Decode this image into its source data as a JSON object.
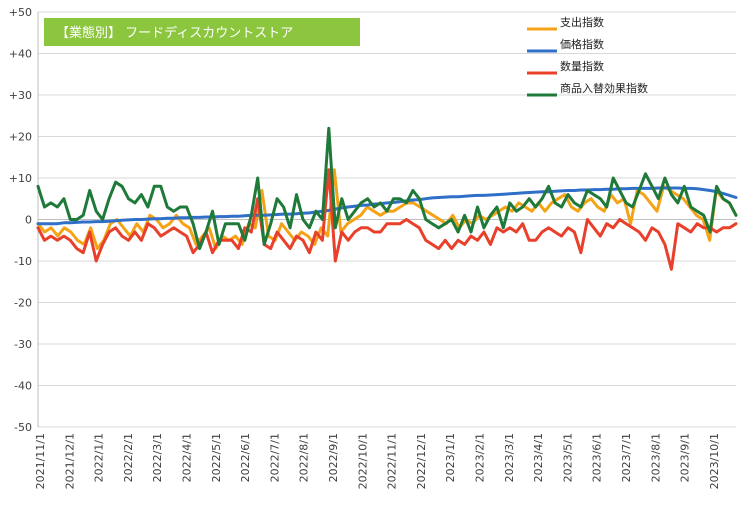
{
  "chart_data": {
    "type": "line",
    "title": "【業態別】 フードディスカウントストア",
    "title_box_color": "#8cc63f",
    "ylim": [
      -50,
      50
    ],
    "y_ticks": [
      "+50",
      "+40",
      "+30",
      "+20",
      "+10",
      "0",
      "-10",
      "-20",
      "-30",
      "-40",
      "-50"
    ],
    "x_ticks": [
      "2021/11/1",
      "2021/12/1",
      "2022/1/1",
      "2022/2/1",
      "2022/3/1",
      "2022/4/1",
      "2022/5/1",
      "2022/6/1",
      "2022/7/1",
      "2022/8/1",
      "2022/9/1",
      "2022/10/1",
      "2022/11/1",
      "2022/12/1",
      "2023/1/1",
      "2023/2/1",
      "2023/3/1",
      "2023/4/1",
      "2023/5/1",
      "2023/6/1",
      "2023/7/1",
      "2023/8/1",
      "2023/9/1",
      "2023/10/1"
    ],
    "grid": true,
    "legend_position": "top-right",
    "series": [
      {
        "name": "支出指数",
        "color": "#f5a316",
        "values": [
          -1,
          -3,
          -2,
          -4,
          -2,
          -3,
          -5,
          -6,
          -2,
          -7,
          -5,
          -1,
          0,
          -2,
          -4,
          -1,
          -3,
          1,
          0,
          -2,
          -1,
          1,
          -1,
          -2,
          -6,
          -4,
          -2,
          -7,
          -4,
          -5,
          -4,
          -6,
          -1,
          -2,
          7,
          -4,
          -5,
          -1,
          -3,
          -5,
          -3,
          -4,
          -6,
          -2,
          -4,
          12,
          -3,
          -1,
          0,
          1,
          3,
          2,
          1,
          2,
          2,
          3,
          4,
          4,
          3,
          2,
          1,
          0,
          -1,
          1,
          -2,
          0,
          -1,
          1,
          0,
          1,
          2,
          3,
          2,
          4,
          3,
          2,
          4,
          2,
          4,
          5,
          6,
          3,
          2,
          4,
          5,
          3,
          2,
          6,
          4,
          5,
          -1,
          7,
          6,
          4,
          2,
          8,
          7,
          6,
          5,
          3,
          1,
          0,
          -5,
          7,
          5,
          4,
          1
        ],
        "marks": [
          -1,
          -3,
          -2,
          -4,
          -2,
          -3,
          -5,
          -6,
          -2,
          -7,
          -5,
          -1,
          0,
          -2,
          -4,
          -1,
          -3,
          1,
          0,
          -2,
          -1,
          1,
          -1,
          -2,
          -6,
          -4,
          -2,
          -7,
          -4,
          -5,
          -4,
          -6,
          -1,
          -2,
          7,
          -4,
          -5,
          -1,
          -3,
          -5,
          -3,
          -4,
          -6,
          -2,
          -4,
          12,
          -3,
          -1,
          0,
          1,
          3,
          2,
          1,
          2,
          2,
          3,
          4,
          4,
          3,
          2,
          1,
          0,
          -1,
          1,
          -2,
          0,
          -1,
          1,
          0,
          1,
          2,
          3,
          2,
          4,
          3,
          2,
          4,
          2,
          4,
          5,
          6,
          3,
          2,
          4,
          5,
          3,
          2,
          6,
          4,
          5,
          -1,
          7,
          6,
          4,
          2,
          8,
          7,
          6,
          5,
          3,
          1,
          0,
          -5,
          7,
          5,
          4,
          1
        ]
      },
      {
        "name": "価格指数",
        "color": "#2f6fc8",
        "values": [
          -1,
          -1,
          -1,
          -1,
          -0.8,
          -0.8,
          -0.7,
          -0.6,
          -0.6,
          -0.5,
          -0.5,
          -0.4,
          -0.3,
          -0.2,
          -0.1,
          0,
          0,
          0.1,
          0.2,
          0.2,
          0.3,
          0.3,
          0.4,
          0.4,
          0.5,
          0.5,
          0.6,
          0.6,
          0.7,
          0.7,
          0.8,
          0.8,
          0.9,
          1,
          1,
          1,
          1.1,
          1.2,
          1.3,
          1.3,
          1.4,
          1.5,
          1.6,
          1.8,
          2,
          2.2,
          2.5,
          2.8,
          3,
          3.2,
          3.4,
          3.5,
          3.7,
          3.8,
          4,
          4.1,
          4.3,
          4.5,
          4.7,
          4.8,
          5,
          5.2,
          5.3,
          5.4,
          5.5,
          5.5,
          5.6,
          5.7,
          5.8,
          5.8,
          5.9,
          6,
          6.1,
          6.2,
          6.3,
          6.4,
          6.5,
          6.6,
          6.7,
          6.7,
          6.8,
          6.9,
          7,
          7,
          7.1,
          7.1,
          7.2,
          7.2,
          7.3,
          7.3,
          7.4,
          7.4,
          7.5,
          7.5,
          7.5,
          7.5,
          7.6,
          7.6,
          7.6,
          7.6,
          7.5,
          7.5,
          7.4,
          7.2,
          7,
          6.7,
          6.3,
          5.8,
          5.3
        ],
        "marks": [
          -1,
          -1,
          -1,
          -1,
          -0.8,
          -0.8,
          -0.7,
          -0.6,
          -0.6,
          -0.5,
          -0.5,
          -0.4,
          -0.3,
          -0.2,
          -0.1,
          0,
          0,
          0.1,
          0.2,
          0.2,
          0.3,
          0.3,
          0.4,
          0.4,
          0.5,
          0.5,
          0.6,
          0.6,
          0.7,
          0.7,
          0.8,
          0.8,
          0.9,
          1,
          1,
          1,
          1.1,
          1.2,
          1.3,
          1.3,
          1.4,
          1.5,
          1.6,
          1.8,
          2,
          2.2,
          2.5,
          2.8,
          3,
          3.2,
          3.4,
          3.5,
          3.7,
          3.8,
          4,
          4.1,
          4.3,
          4.5,
          4.7,
          4.8,
          5,
          5.2,
          5.3,
          5.4,
          5.5,
          5.5,
          5.6,
          5.7,
          5.8,
          5.8,
          5.9,
          6,
          6.1,
          6.2,
          6.3,
          6.4,
          6.5,
          6.6,
          6.7,
          6.7,
          6.8,
          6.9,
          7,
          7,
          7.1,
          7.1,
          7.2,
          7.2,
          7.3,
          7.3,
          7.4,
          7.4,
          7.5,
          7.5,
          7.5,
          7.5,
          7.6,
          7.6,
          7.6,
          7.6,
          7.5,
          7.5,
          7.4,
          7.2,
          7,
          6.7,
          6.3,
          5.8,
          5.3
        ]
      },
      {
        "name": "数量指数",
        "color": "#e8402a",
        "values": [
          -2,
          -5,
          -4,
          -5,
          -4,
          -5,
          -7,
          -8,
          -3,
          -10,
          -6,
          -3,
          -2,
          -4,
          -5,
          -3,
          -5,
          -1,
          -2,
          -4,
          -3,
          -2,
          -3,
          -4,
          -8,
          -6,
          -3,
          -8,
          -5,
          -5,
          -5,
          -7,
          -2,
          -3,
          5,
          -6,
          -7,
          -3,
          -5,
          -7,
          -4,
          -5,
          -8,
          -3,
          -5,
          12,
          -10,
          -3,
          -5,
          -3,
          -2,
          -2,
          -3,
          -3,
          -1,
          -1,
          -1,
          0,
          -1,
          -2,
          -5,
          -6,
          -7,
          -5,
          -7,
          -5,
          -6,
          -4,
          -5,
          -3,
          -6,
          -2,
          -3,
          -2,
          -3,
          -1,
          -5,
          -5,
          -3,
          -2,
          -3,
          -4,
          -2,
          -3,
          -8,
          0,
          -2,
          -4,
          -1,
          -2,
          0,
          -1,
          -2,
          -3,
          -5,
          -2,
          -3,
          -6,
          -12,
          -1,
          -2,
          -3,
          -1,
          -2,
          -2,
          -3,
          -2,
          -2,
          -1
        ],
        "marks": [
          -2,
          -5,
          -4,
          -5,
          -4,
          -5,
          -7,
          -8,
          -3,
          -10,
          -6,
          -3,
          -2,
          -4,
          -5,
          -3,
          -5,
          -1,
          -2,
          -4,
          -3,
          -2,
          -3,
          -4,
          -8,
          -6,
          -3,
          -8,
          -5,
          -5,
          -5,
          -7,
          -2,
          -3,
          5,
          -6,
          -7,
          -3,
          -5,
          -7,
          -4,
          -5,
          -8,
          -3,
          -5,
          12,
          -10,
          -3,
          -5,
          -3,
          -2,
          -2,
          -3,
          -3,
          -1,
          -1,
          -1,
          0,
          -1,
          -2,
          -5,
          -6,
          -7,
          -5,
          -7,
          -5,
          -6,
          -4,
          -5,
          -3,
          -6,
          -2,
          -3,
          -2,
          -3,
          -1,
          -5,
          -5,
          -3,
          -2,
          -3,
          -4,
          -2,
          -3,
          -8,
          0,
          -2,
          -4,
          -1,
          -2,
          0,
          -1,
          -2,
          -3,
          -5,
          -2,
          -3,
          -6,
          -12,
          -1,
          -2,
          -3,
          -1,
          -2,
          -2,
          -3,
          -2,
          -2,
          -1
        ]
      },
      {
        "name": "商品入替効果指数",
        "color": "#1f7a3a",
        "values": [
          8,
          3,
          4,
          3,
          5,
          0,
          0,
          1,
          7,
          2,
          0,
          5,
          9,
          8,
          5,
          4,
          6,
          3,
          8,
          8,
          3,
          2,
          3,
          3,
          -1,
          -7,
          -3,
          2,
          -6,
          -1,
          -1,
          -1,
          -5,
          1,
          10,
          -6,
          -1,
          5,
          3,
          -2,
          6,
          0,
          -2,
          2,
          0,
          22,
          -2,
          5,
          0,
          2,
          4,
          5,
          3,
          4,
          2,
          5,
          5,
          4,
          7,
          5,
          0,
          -1,
          -2,
          -1,
          0,
          -3,
          1,
          -3,
          3,
          -2,
          1,
          3,
          -2,
          4,
          2,
          3,
          5,
          3,
          5,
          8,
          4,
          3,
          6,
          4,
          3,
          7,
          6,
          5,
          3,
          10,
          7,
          4,
          3,
          7,
          11,
          8,
          5,
          10,
          6,
          4,
          8,
          3,
          2,
          1,
          -3,
          8,
          5,
          4,
          1
        ],
        "marks": [
          8,
          3,
          4,
          3,
          5,
          0,
          0,
          1,
          7,
          2,
          0,
          5,
          9,
          8,
          5,
          4,
          6,
          3,
          8,
          8,
          3,
          2,
          3,
          3,
          -1,
          -7,
          -3,
          2,
          -6,
          -1,
          -1,
          -1,
          -5,
          1,
          10,
          -6,
          -1,
          5,
          3,
          -2,
          6,
          0,
          -2,
          2,
          0,
          22,
          -2,
          5,
          0,
          2,
          4,
          5,
          3,
          4,
          2,
          5,
          5,
          4,
          7,
          5,
          0,
          -1,
          -2,
          -1,
          0,
          -3,
          1,
          -3,
          3,
          -2,
          1,
          3,
          -2,
          4,
          2,
          3,
          5,
          3,
          5,
          8,
          4,
          3,
          6,
          4,
          3,
          7,
          6,
          5,
          3,
          10,
          7,
          4,
          3,
          7,
          11,
          8,
          5,
          10,
          6,
          4,
          8,
          3,
          2,
          1,
          -3,
          8,
          5,
          4,
          1
        ]
      }
    ]
  }
}
